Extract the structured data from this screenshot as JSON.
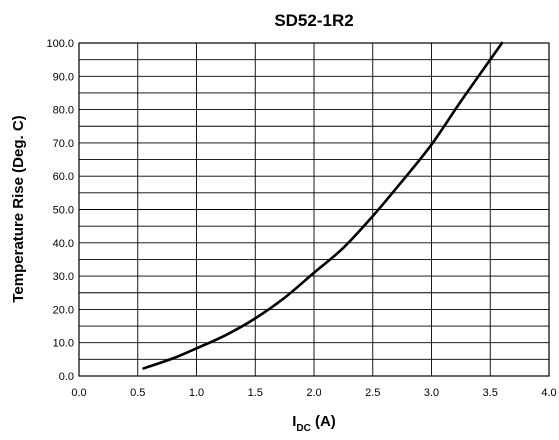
{
  "chart_data": {
    "type": "line",
    "title": "SD52-1R2",
    "xlabel": {
      "main": "I",
      "sub": "DC",
      "suffix": " (A)"
    },
    "ylabel": "Temperature Rise (Deg. C)",
    "xlim": [
      0,
      4
    ],
    "ylim": [
      0,
      100
    ],
    "x_ticks": [
      "0.0",
      "0.5",
      "1.0",
      "1.5",
      "2.0",
      "2.5",
      "3.0",
      "3.5",
      "4.0"
    ],
    "y_ticks": [
      "0.0",
      "10.0",
      "20.0",
      "30.0",
      "40.0",
      "50.0",
      "60.0",
      "70.0",
      "80.0",
      "90.0",
      "100.0"
    ],
    "grid": true,
    "series": [
      {
        "color": "#000000",
        "x": [
          0.55,
          0.8,
          1.0,
          1.25,
          1.5,
          1.75,
          2.0,
          2.25,
          2.5,
          2.75,
          3.0,
          3.25,
          3.5,
          3.6
        ],
        "y": [
          2.3,
          5.3,
          8.3,
          12.3,
          17.3,
          23.5,
          31.0,
          38.5,
          48.0,
          58.5,
          69.5,
          82.5,
          95.0,
          100.0
        ]
      }
    ]
  }
}
